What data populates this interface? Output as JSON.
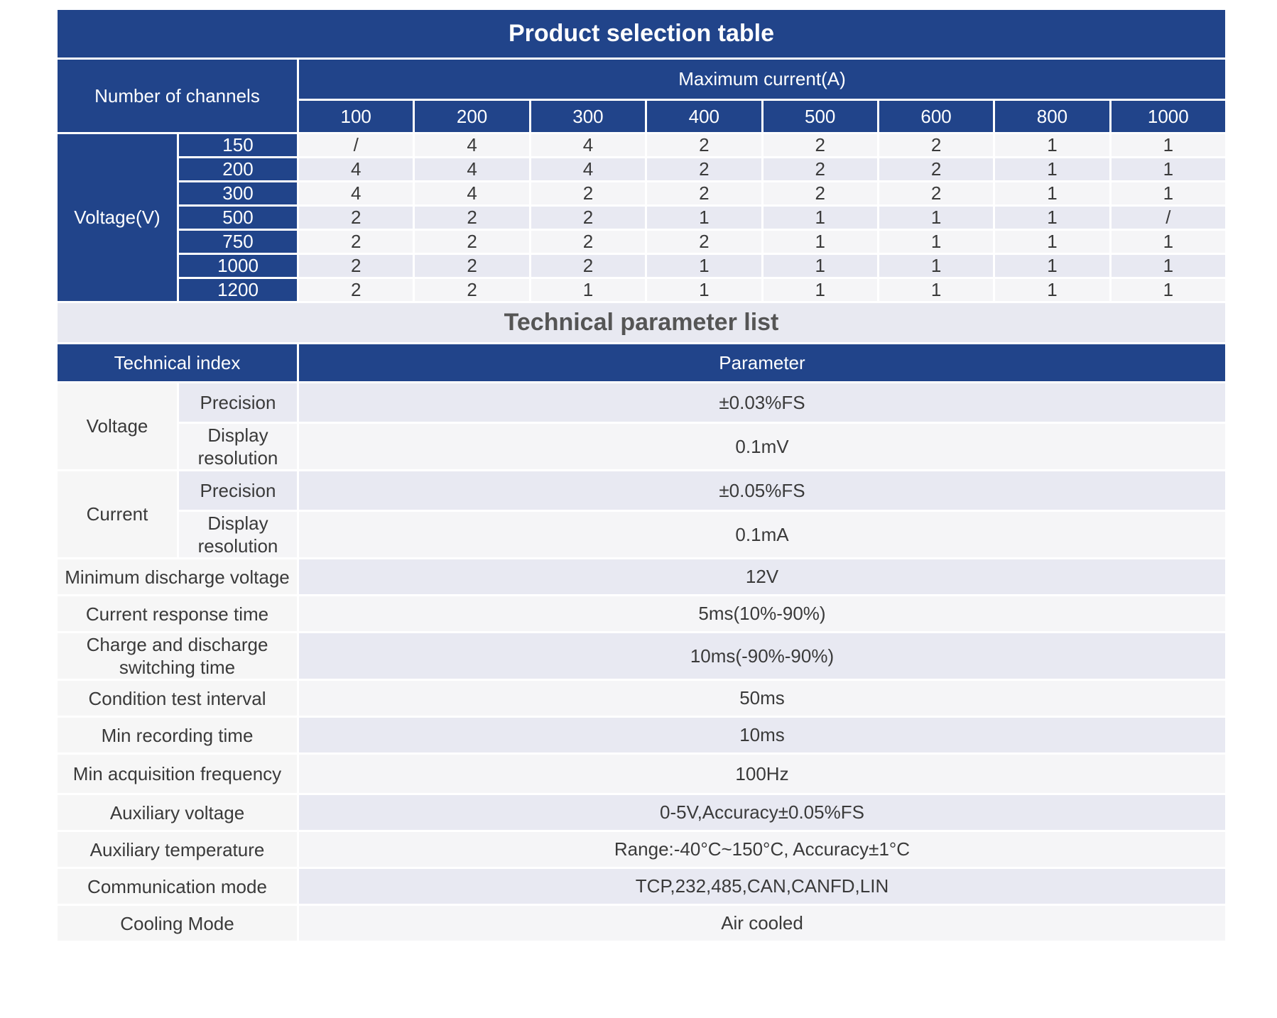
{
  "selection": {
    "title": "Product selection table",
    "channels_label": "Number of channels",
    "max_current_label": "Maximum current(A)",
    "currents": [
      "100",
      "200",
      "300",
      "400",
      "500",
      "600",
      "800",
      "1000"
    ],
    "voltage_label": "Voltage(V)",
    "rows": [
      {
        "voltage": "150",
        "values": [
          "/",
          "4",
          "4",
          "2",
          "2",
          "2",
          "1",
          "1"
        ]
      },
      {
        "voltage": "200",
        "values": [
          "4",
          "4",
          "4",
          "2",
          "2",
          "2",
          "1",
          "1"
        ]
      },
      {
        "voltage": "300",
        "values": [
          "4",
          "4",
          "2",
          "2",
          "2",
          "2",
          "1",
          "1"
        ]
      },
      {
        "voltage": "500",
        "values": [
          "2",
          "2",
          "2",
          "1",
          "1",
          "1",
          "1",
          "/"
        ]
      },
      {
        "voltage": "750",
        "values": [
          "2",
          "2",
          "2",
          "2",
          "1",
          "1",
          "1",
          "1"
        ]
      },
      {
        "voltage": "1000",
        "values": [
          "2",
          "2",
          "2",
          "1",
          "1",
          "1",
          "1",
          "1"
        ]
      },
      {
        "voltage": "1200",
        "values": [
          "2",
          "2",
          "1",
          "1",
          "1",
          "1",
          "1",
          "1"
        ]
      }
    ]
  },
  "technical": {
    "title": "Technical parameter list",
    "index_label": "Technical index",
    "parameter_label": "Parameter",
    "voltage": {
      "label": "Voltage",
      "precision_label": "Precision",
      "precision_value": "±0.03%FS",
      "resolution_label": "Display resolution",
      "resolution_value": "0.1mV"
    },
    "current": {
      "label": "Current",
      "precision_label": "Precision",
      "precision_value": "±0.05%FS",
      "resolution_label": "Display resolution",
      "resolution_value": "0.1mA"
    },
    "params": [
      {
        "name": "Minimum discharge voltage",
        "value": "12V"
      },
      {
        "name": "Current response time",
        "value": "5ms(10%-90%)"
      },
      {
        "name": "Charge and discharge switching time",
        "value": "10ms(-90%-90%)"
      },
      {
        "name": "Condition test interval",
        "value": "50ms"
      },
      {
        "name": "Min recording time",
        "value": "10ms"
      },
      {
        "name": "Min acquisition frequency",
        "value": "100Hz"
      },
      {
        "name": "Auxiliary voltage",
        "value": "0-5V,Accuracy±0.05%FS"
      },
      {
        "name": "Auxiliary temperature",
        "value": "Range:-40°C~150°C, Accuracy±1°C"
      },
      {
        "name": "Communication mode",
        "value": "TCP,232,485,CAN,CANFD,LIN"
      },
      {
        "name": "Cooling Mode",
        "value": "Air cooled"
      }
    ]
  }
}
